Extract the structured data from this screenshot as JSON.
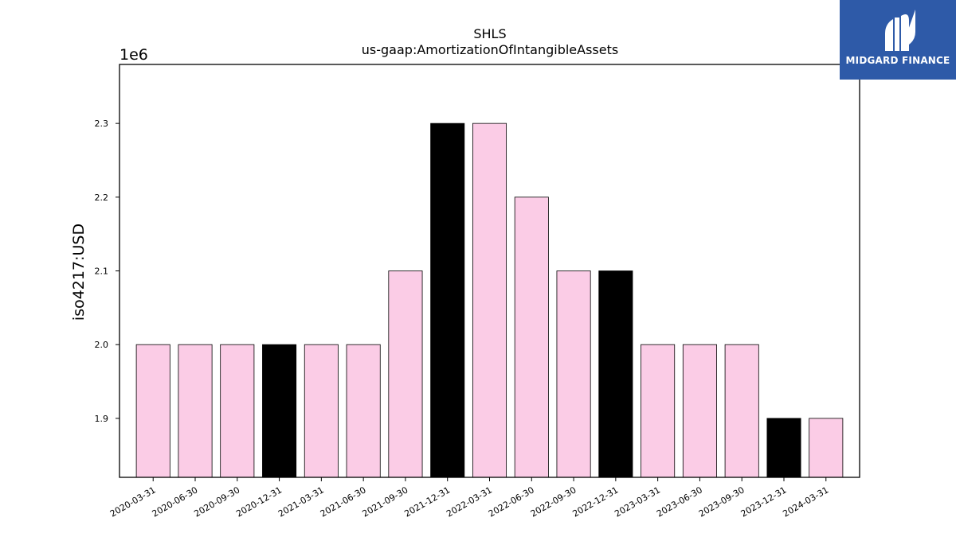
{
  "brand": {
    "name": "MIDGARD FINANCE",
    "bg_color": "#2e5aa8",
    "icon": "midgard-logo-icon"
  },
  "chart_data": {
    "type": "bar",
    "title": "SHLS",
    "subtitle": "us-gaap:AmortizationOfIntangibleAssets",
    "xlabel": "",
    "ylabel": "iso4217:USD",
    "y_multiplier_label": "1e6",
    "categories": [
      "2020-03-31",
      "2020-06-30",
      "2020-09-30",
      "2020-12-31",
      "2021-03-31",
      "2021-06-30",
      "2021-09-30",
      "2021-12-31",
      "2022-03-31",
      "2022-06-30",
      "2022-09-30",
      "2022-12-31",
      "2023-03-31",
      "2023-06-30",
      "2023-09-30",
      "2023-12-31",
      "2024-03-31"
    ],
    "values": [
      2000000,
      2000000,
      2000000,
      2000000,
      2000000,
      2000000,
      2100000,
      2300000,
      2300000,
      2200000,
      2100000,
      2100000,
      2000000,
      2000000,
      2000000,
      1900000,
      1900000
    ],
    "bar_colors": [
      "#fbcce6",
      "#fbcce6",
      "#fbcce6",
      "#000000",
      "#fbcce6",
      "#fbcce6",
      "#fbcce6",
      "#000000",
      "#fbcce6",
      "#fbcce6",
      "#fbcce6",
      "#000000",
      "#fbcce6",
      "#fbcce6",
      "#fbcce6",
      "#000000",
      "#fbcce6"
    ],
    "ylim": [
      1820000,
      2380000
    ],
    "yticks": [
      1900000,
      2000000,
      2100000,
      2200000,
      2300000
    ],
    "ytick_labels": [
      "1.9",
      "2.0",
      "2.1",
      "2.2",
      "2.3"
    ],
    "grid": false,
    "legend": "none"
  }
}
